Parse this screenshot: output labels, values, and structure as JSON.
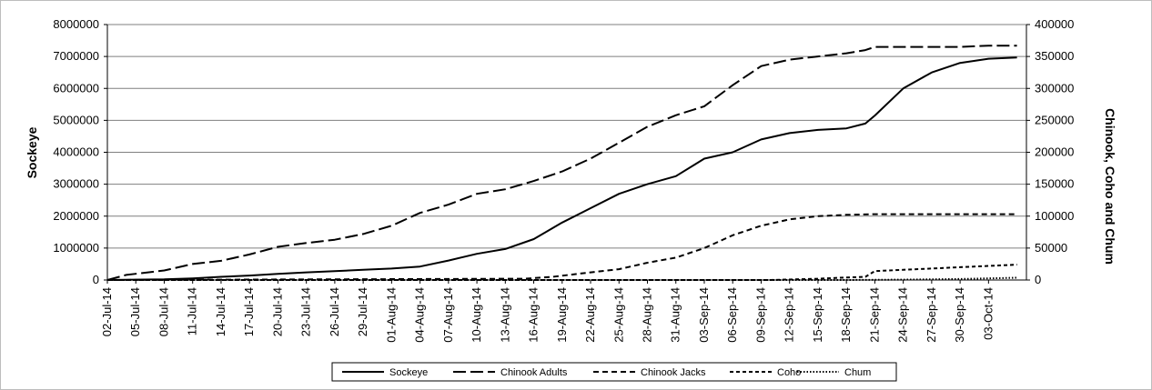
{
  "chart_data": {
    "type": "line",
    "ylabel": "Sockeye",
    "y2label": "Chinook, Coho and Chum",
    "ylim": [
      0,
      8000000
    ],
    "y2lim": [
      0,
      400000
    ],
    "yticks": [
      "0",
      "1000000",
      "2000000",
      "3000000",
      "4000000",
      "5000000",
      "6000000",
      "7000000",
      "8000000"
    ],
    "y2ticks": [
      "0",
      "50000",
      "100000",
      "150000",
      "200000",
      "250000",
      "300000",
      "350000",
      "400000"
    ],
    "xlim": [
      "02-Jul-14",
      "07-Oct-14"
    ],
    "grid": "horizontal",
    "legend_position": "bottom",
    "xticks": [
      "02-Jul-14",
      "05-Jul-14",
      "08-Jul-14",
      "11-Jul-14",
      "14-Jul-14",
      "17-Jul-14",
      "20-Jul-14",
      "23-Jul-14",
      "26-Jul-14",
      "29-Jul-14",
      "01-Aug-14",
      "04-Aug-14",
      "07-Aug-14",
      "10-Aug-14",
      "13-Aug-14",
      "16-Aug-14",
      "19-Aug-14",
      "22-Aug-14",
      "25-Aug-14",
      "28-Aug-14",
      "31-Aug-14",
      "03-Sep-14",
      "06-Sep-14",
      "09-Sep-14",
      "12-Sep-14",
      "15-Sep-14",
      "18-Sep-14",
      "21-Sep-14",
      "24-Sep-14",
      "27-Sep-14",
      "30-Sep-14",
      "03-Oct-14"
    ],
    "series": [
      {
        "name": "Sockeye",
        "axis": "left",
        "dash": "",
        "x": [
          "02-Jul-14",
          "08-Jul-14",
          "11-Jul-14",
          "14-Jul-14",
          "17-Jul-14",
          "20-Jul-14",
          "23-Jul-14",
          "26-Jul-14",
          "29-Jul-14",
          "01-Aug-14",
          "04-Aug-14",
          "07-Aug-14",
          "10-Aug-14",
          "13-Aug-14",
          "16-Aug-14",
          "19-Aug-14",
          "22-Aug-14",
          "25-Aug-14",
          "28-Aug-14",
          "31-Aug-14",
          "03-Sep-14",
          "06-Sep-14",
          "09-Sep-14",
          "12-Sep-14",
          "15-Sep-14",
          "18-Sep-14",
          "20-Sep-14",
          "21-Sep-14",
          "24-Sep-14",
          "27-Sep-14",
          "30-Sep-14",
          "03-Oct-14",
          "06-Oct-14"
        ],
        "y": [
          0,
          20000,
          50000,
          100000,
          140000,
          190000,
          240000,
          280000,
          320000,
          360000,
          420000,
          610000,
          820000,
          970000,
          1280000,
          1800000,
          2250000,
          2700000,
          3000000,
          3250000,
          3800000,
          4000000,
          4400000,
          4600000,
          4700000,
          4750000,
          4900000,
          5150000,
          6000000,
          6500000,
          6800000,
          6930000,
          6970000
        ]
      },
      {
        "name": "Chinook Adults",
        "axis": "right",
        "dash": "14 5",
        "x": [
          "02-Jul-14",
          "04-Jul-14",
          "08-Jul-14",
          "11-Jul-14",
          "14-Jul-14",
          "17-Jul-14",
          "20-Jul-14",
          "23-Jul-14",
          "26-Jul-14",
          "29-Jul-14",
          "01-Aug-14",
          "04-Aug-14",
          "07-Aug-14",
          "10-Aug-14",
          "13-Aug-14",
          "16-Aug-14",
          "19-Aug-14",
          "22-Aug-14",
          "25-Aug-14",
          "28-Aug-14",
          "31-Aug-14",
          "03-Sep-14",
          "06-Sep-14",
          "09-Sep-14",
          "12-Sep-14",
          "15-Sep-14",
          "18-Sep-14",
          "20-Sep-14",
          "21-Sep-14",
          "24-Sep-14",
          "27-Sep-14",
          "30-Sep-14",
          "03-Oct-14",
          "06-Oct-14"
        ],
        "y": [
          0,
          8000,
          15000,
          25000,
          30000,
          40000,
          52000,
          58000,
          63000,
          72000,
          85000,
          105000,
          118000,
          135000,
          142000,
          155000,
          170000,
          190000,
          215000,
          240000,
          258000,
          272000,
          305000,
          335000,
          345000,
          350000,
          355000,
          360000,
          365000,
          365000,
          365000,
          365000,
          367000,
          367000
        ]
      },
      {
        "name": "Chinook Jacks",
        "axis": "right",
        "dash": "6 4",
        "x": [
          "02-Jul-14",
          "15-Aug-14",
          "18-Aug-14",
          "22-Aug-14",
          "25-Aug-14",
          "28-Aug-14",
          "31-Aug-14",
          "03-Sep-14",
          "06-Sep-14",
          "09-Sep-14",
          "12-Sep-14",
          "15-Sep-14",
          "18-Sep-14",
          "21-Sep-14",
          "24-Sep-14",
          "27-Sep-14",
          "30-Sep-14",
          "03-Oct-14",
          "06-Oct-14"
        ],
        "y": [
          0,
          2000,
          5000,
          12000,
          17000,
          27000,
          35000,
          50000,
          70000,
          85000,
          95000,
          100000,
          102000,
          103000,
          103000,
          103000,
          103000,
          103000,
          103000
        ]
      },
      {
        "name": "Coho",
        "axis": "right",
        "dash": "4 3",
        "x": [
          "02-Jul-14",
          "10-Sep-14",
          "15-Sep-14",
          "18-Sep-14",
          "20-Sep-14",
          "21-Sep-14",
          "24-Sep-14",
          "27-Sep-14",
          "30-Sep-14",
          "03-Oct-14",
          "06-Oct-14"
        ],
        "y": [
          0,
          0,
          2000,
          4000,
          5000,
          14000,
          16000,
          18000,
          20000,
          22000,
          24000
        ]
      },
      {
        "name": "Chum",
        "axis": "right",
        "dash": "1.5 2",
        "x": [
          "02-Jul-14",
          "18-Sep-14",
          "24-Sep-14",
          "30-Sep-14",
          "03-Oct-14",
          "06-Oct-14"
        ],
        "y": [
          0,
          0,
          500,
          1500,
          2500,
          3500
        ]
      }
    ]
  }
}
